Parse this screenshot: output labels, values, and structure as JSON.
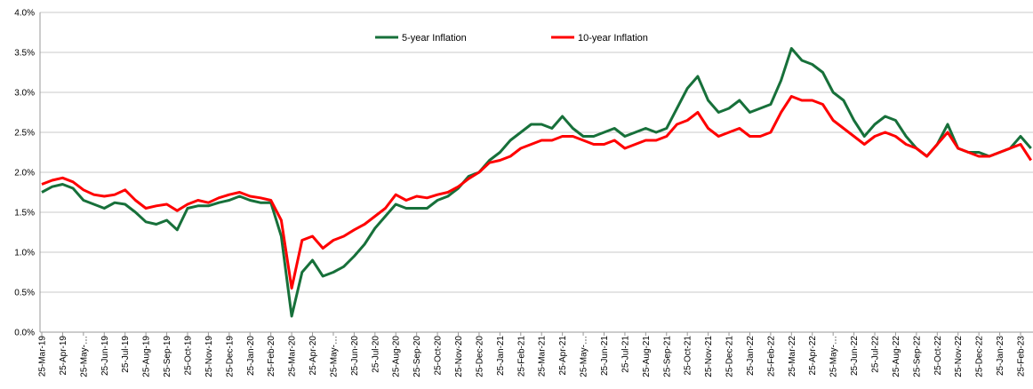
{
  "chart_data": {
    "type": "line",
    "categories": [
      "25-Mar-19",
      null,
      "25-Apr-19",
      null,
      "25-May-…",
      null,
      "25-Jun-19",
      null,
      "25-Jul-19",
      null,
      "25-Aug-19",
      null,
      "25-Sep-19",
      null,
      "25-Oct-19",
      null,
      "25-Nov-19",
      null,
      "25-Dec-19",
      null,
      "25-Jan-20",
      null,
      "25-Feb-20",
      null,
      "25-Mar-20",
      null,
      "25-Apr-20",
      null,
      "25-May-…",
      null,
      "25-Jun-20",
      null,
      "25-Jul-20",
      null,
      "25-Aug-20",
      null,
      "25-Sep-20",
      null,
      "25-Oct-20",
      null,
      "25-Nov-20",
      null,
      "25-Dec-20",
      null,
      "25-Jan-21",
      null,
      "25-Feb-21",
      null,
      "25-Mar-21",
      null,
      "25-Apr-21",
      null,
      "25-May-…",
      null,
      "25-Jun-21",
      null,
      "25-Jul-21",
      null,
      "25-Aug-21",
      null,
      "25-Sep-21",
      null,
      "25-Oct-21",
      null,
      "25-Nov-21",
      null,
      "25-Dec-21",
      null,
      "25-Jan-22",
      null,
      "25-Feb-22",
      null,
      "25-Mar-22",
      null,
      "25-Apr-22",
      null,
      "25-May-…",
      null,
      "25-Jun-22",
      null,
      "25-Jul-22",
      null,
      "25-Aug-22",
      null,
      "25-Sep-22",
      null,
      "25-Oct-22",
      null,
      "25-Nov-22",
      null,
      "25-Dec-22",
      null,
      "25-Jan-23",
      null,
      "25-Feb-23",
      null
    ],
    "series": [
      {
        "name": "5-year Inflation",
        "color": "#17703a",
        "values": [
          1.75,
          1.82,
          1.85,
          1.8,
          1.65,
          1.6,
          1.55,
          1.62,
          1.6,
          1.5,
          1.38,
          1.35,
          1.4,
          1.28,
          1.55,
          1.58,
          1.58,
          1.62,
          1.65,
          1.7,
          1.65,
          1.62,
          1.62,
          1.2,
          0.2,
          0.75,
          0.9,
          0.7,
          0.75,
          0.82,
          0.95,
          1.1,
          1.3,
          1.45,
          1.6,
          1.55,
          1.55,
          1.55,
          1.65,
          1.7,
          1.8,
          1.95,
          2.0,
          2.15,
          2.25,
          2.4,
          2.5,
          2.6,
          2.6,
          2.55,
          2.7,
          2.55,
          2.45,
          2.45,
          2.5,
          2.55,
          2.45,
          2.5,
          2.55,
          2.5,
          2.55,
          2.8,
          3.05,
          3.2,
          2.9,
          2.75,
          2.8,
          2.9,
          2.75,
          2.8,
          2.85,
          3.15,
          3.55,
          3.4,
          3.35,
          3.25,
          3.0,
          2.9,
          2.65,
          2.45,
          2.6,
          2.7,
          2.65,
          2.45,
          2.3,
          2.2,
          2.35,
          2.6,
          2.3,
          2.25,
          2.25,
          2.2,
          2.25,
          2.3,
          2.45,
          2.3
        ]
      },
      {
        "name": "10-year Inflation",
        "color": "#ff0000",
        "values": [
          1.85,
          1.9,
          1.93,
          1.88,
          1.78,
          1.72,
          1.7,
          1.72,
          1.78,
          1.65,
          1.55,
          1.58,
          1.6,
          1.52,
          1.6,
          1.65,
          1.62,
          1.68,
          1.72,
          1.75,
          1.7,
          1.68,
          1.65,
          1.4,
          0.55,
          1.15,
          1.2,
          1.05,
          1.15,
          1.2,
          1.28,
          1.35,
          1.45,
          1.55,
          1.72,
          1.65,
          1.7,
          1.68,
          1.72,
          1.75,
          1.82,
          1.92,
          2.0,
          2.12,
          2.15,
          2.2,
          2.3,
          2.35,
          2.4,
          2.4,
          2.45,
          2.45,
          2.4,
          2.35,
          2.35,
          2.4,
          2.3,
          2.35,
          2.4,
          2.4,
          2.45,
          2.6,
          2.65,
          2.75,
          2.55,
          2.45,
          2.5,
          2.55,
          2.45,
          2.45,
          2.5,
          2.75,
          2.95,
          2.9,
          2.9,
          2.85,
          2.65,
          2.55,
          2.45,
          2.35,
          2.45,
          2.5,
          2.45,
          2.35,
          2.3,
          2.2,
          2.35,
          2.5,
          2.3,
          2.25,
          2.2,
          2.2,
          2.25,
          2.3,
          2.35,
          2.15
        ]
      }
    ],
    "ylim": [
      0,
      4
    ],
    "yticks": [
      {
        "value": 0,
        "label": "0.0%"
      },
      {
        "value": 0.5,
        "label": "0.5%"
      },
      {
        "value": 1,
        "label": "1.0%"
      },
      {
        "value": 1.5,
        "label": "1.5%"
      },
      {
        "value": 2,
        "label": "2.0%"
      },
      {
        "value": 2.5,
        "label": "2.5%"
      },
      {
        "value": 3,
        "label": "3.0%"
      },
      {
        "value": 3.5,
        "label": "3.5%"
      },
      {
        "value": 4,
        "label": "4.0%"
      }
    ],
    "grid": true,
    "legend": "top"
  }
}
